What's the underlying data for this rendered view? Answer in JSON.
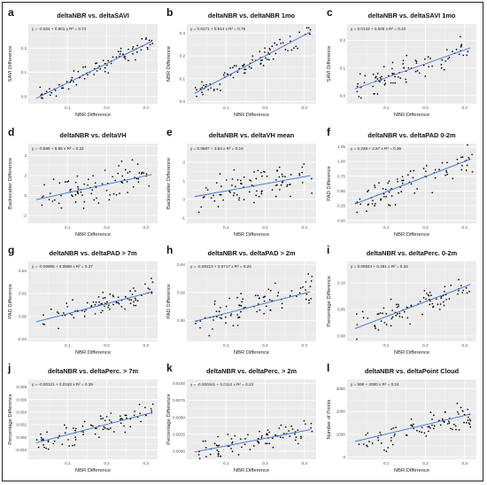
{
  "chart_data": [
    {
      "letter": "a",
      "type": "scatter",
      "title": "deltaNBR vs. deltaSAVI",
      "xlabel": "NBR Difference",
      "ylabel": "SAVI Difference",
      "equation": "y = -0.024 + 0.801 x   R² = 0.74",
      "xlim": [
        0,
        0.33
      ],
      "ylim": [
        -0.03,
        0.3
      ],
      "xticks": [
        0.1,
        0.2,
        0.3
      ],
      "yticks": [
        0.0,
        0.1,
        0.2
      ],
      "xtick_labels": [
        "0.1",
        "0.2",
        "0.3"
      ],
      "ytick_labels": [
        "0.0",
        "0.1",
        "0.2"
      ],
      "fit": {
        "intercept": -0.024,
        "slope": 0.801
      },
      "noise": 0.03,
      "seed": 11
    },
    {
      "letter": "b",
      "type": "scatter",
      "title": "deltaNBR vs. deltaNBR 1mo",
      "xlabel": "NBR Difference",
      "ylabel": "NBR Difference",
      "equation": "y = 0.0171 + 0.914 x   R² = 0.76",
      "xlim": [
        0,
        0.33
      ],
      "ylim": [
        -0.01,
        0.34
      ],
      "xticks": [
        0.1,
        0.2,
        0.3
      ],
      "yticks": [
        0.0,
        0.1,
        0.2,
        0.3
      ],
      "xtick_labels": [
        "0.1",
        "0.2",
        "0.3"
      ],
      "ytick_labels": [
        "0.0",
        "0.1",
        "0.2",
        "0.3"
      ],
      "fit": {
        "intercept": 0.0171,
        "slope": 0.914
      },
      "noise": 0.035,
      "seed": 22
    },
    {
      "letter": "c",
      "type": "scatter",
      "title": "deltaNBR vs. deltaSAVI 1mo",
      "xlabel": "NBR Difference",
      "ylabel": "SAVI Difference",
      "equation": "y = 0.0143 + 0.505 x   R² = 0.44",
      "xlim": [
        0,
        0.33
      ],
      "ylim": [
        -0.03,
        0.26
      ],
      "xticks": [
        0.1,
        0.2,
        0.3
      ],
      "yticks": [
        0.0,
        0.1,
        0.2
      ],
      "xtick_labels": [
        "0.1",
        "0.2",
        "0.3"
      ],
      "ytick_labels": [
        "0.0",
        "0.1",
        "0.2"
      ],
      "fit": {
        "intercept": 0.0143,
        "slope": 0.505
      },
      "noise": 0.045,
      "seed": 33
    },
    {
      "letter": "d",
      "type": "scatter",
      "title": "deltaNBR vs. deltaVH",
      "xlabel": "NBR Difference",
      "ylabel": "Backscatter Difference",
      "equation": "y = -0.586 + 8.55 x   R² = 0.22",
      "xlim": [
        0,
        0.33
      ],
      "ylim": [
        -2.8,
        5.2
      ],
      "xticks": [
        0.1,
        0.2,
        0.3
      ],
      "yticks": [
        -2,
        0,
        2,
        4
      ],
      "xtick_labels": [
        "0.1",
        "0.2",
        "0.3"
      ],
      "ytick_labels": [
        "-2",
        "0",
        "2",
        "4"
      ],
      "fit": {
        "intercept": -0.586,
        "slope": 8.55
      },
      "noise": 1.5,
      "seed": 44
    },
    {
      "letter": "e",
      "type": "scatter",
      "title": "deltaNBR vs. deltaVH mean",
      "xlabel": "NBR Difference",
      "ylabel": "Backscatter Difference",
      "equation": "y = 0.0687 + 3.84 x   R² = 0.16",
      "xlim": [
        0,
        0.33
      ],
      "ylim": [
        -1.3,
        3.0
      ],
      "xticks": [
        0.1,
        0.2,
        0.3
      ],
      "yticks": [
        -1,
        0,
        1,
        2
      ],
      "xtick_labels": [
        "0.1",
        "0.2",
        "0.3"
      ],
      "ytick_labels": [
        "-1",
        "0",
        "1",
        "2"
      ],
      "fit": {
        "intercept": 0.0687,
        "slope": 3.84
      },
      "noise": 0.8,
      "seed": 55
    },
    {
      "letter": "f",
      "type": "scatter",
      "title": "deltaNBR vs. deltaPAD 0-2m",
      "xlabel": "NBR Difference",
      "ylabel": "PAD Difference",
      "equation": "y = 0.228 + 2.57 x   R² = 0.36",
      "xlim": [
        0,
        0.33
      ],
      "ylim": [
        -0.05,
        1.3
      ],
      "xticks": [
        0.1,
        0.2,
        0.3
      ],
      "yticks": [
        0.0,
        0.25,
        0.5,
        0.75,
        1.0,
        1.25
      ],
      "xtick_labels": [
        "0.1",
        "0.2",
        "0.3"
      ],
      "ytick_labels": [
        "0.00",
        "0.25",
        "0.50",
        "0.75",
        "1.00",
        "1.25"
      ],
      "fit": {
        "intercept": 0.228,
        "slope": 2.57
      },
      "noise": 0.2,
      "seed": 66
    },
    {
      "letter": "g",
      "type": "scatter",
      "title": "deltaNBR vs. deltaPAD > 7m",
      "xlabel": "NBR Difference",
      "ylabel": "PAD Difference",
      "equation": "y = -0.00665 + 0.0888 x   R² = 0.37",
      "xlim": [
        0,
        0.33
      ],
      "ylim": [
        -0.022,
        0.048
      ],
      "xticks": [
        0.1,
        0.2,
        0.3
      ],
      "yticks": [
        -0.02,
        0.0,
        0.02,
        0.04
      ],
      "xtick_labels": [
        "0.1",
        "0.2",
        "0.3"
      ],
      "ytick_labels": [
        "-0.02",
        "0.00",
        "0.02",
        "0.04"
      ],
      "fit": {
        "intercept": -0.00665,
        "slope": 0.0888
      },
      "noise": 0.009,
      "seed": 77
    },
    {
      "letter": "h",
      "type": "scatter",
      "title": "deltaNBR vs. deltaPAD > 2m",
      "xlabel": "NBR Difference",
      "ylabel": "PAD Difference",
      "equation": "y = -0.00213 + 0.0717 x   R² = 0.24",
      "xlim": [
        0,
        0.33
      ],
      "ylim": [
        -0.015,
        0.042
      ],
      "xticks": [
        0.1,
        0.2,
        0.3
      ],
      "yticks": [
        0.0,
        0.02,
        0.04
      ],
      "xtick_labels": [
        "0.1",
        "0.2",
        "0.3"
      ],
      "ytick_labels": [
        "0.00",
        "0.02",
        "0.04"
      ],
      "fit": {
        "intercept": -0.00213,
        "slope": 0.0717
      },
      "noise": 0.009,
      "seed": 88
    },
    {
      "letter": "i",
      "type": "scatter",
      "title": "deltaNBR vs. deltaPerc. 0-2m",
      "xlabel": "NBR Difference",
      "ylabel": "Percentage Difference",
      "equation": "y = 0.00844 + 0.281 x   R² = 0.34",
      "xlim": [
        0,
        0.33
      ],
      "ylim": [
        -0.01,
        0.14
      ],
      "xticks": [
        0.1,
        0.2,
        0.3
      ],
      "yticks": [
        0.0,
        0.05,
        0.1
      ],
      "xtick_labels": [
        "0.1",
        "0.2",
        "0.3"
      ],
      "ytick_labels": [
        "0.00",
        "0.05",
        "0.10"
      ],
      "fit": {
        "intercept": 0.00844,
        "slope": 0.281
      },
      "noise": 0.022,
      "seed": 99
    },
    {
      "letter": "j",
      "type": "scatter",
      "title": "deltaNBR vs. deltaPerc. > 7m",
      "xlabel": "NBR Difference",
      "ylabel": "Percentage Difference",
      "equation": "y = -0.00121 + 0.0163 x   R² = 0.39",
      "xlim": [
        0,
        0.33
      ],
      "ylim": [
        -0.0035,
        0.0092
      ],
      "xticks": [
        0.1,
        0.2,
        0.3
      ],
      "yticks": [
        -0.002,
        0.0,
        0.002,
        0.004,
        0.006,
        0.008
      ],
      "xtick_labels": [
        "0.1",
        "0.2",
        "0.3"
      ],
      "ytick_labels": [
        "-0.002",
        "0.000",
        "0.002",
        "0.004",
        "0.006",
        "0.008"
      ],
      "fit": {
        "intercept": -0.00121,
        "slope": 0.0163
      },
      "noise": 0.0015,
      "seed": 111
    },
    {
      "letter": "k",
      "type": "scatter",
      "title": "deltaNBR vs. deltaPerc. > 2m",
      "xlabel": "NBR Difference",
      "ylabel": "Percentage Difference",
      "equation": "y = -0.000341 + 0.0112 x   R² = 0.23",
      "xlim": [
        0,
        0.33
      ],
      "ylim": [
        -0.0012,
        0.0106
      ],
      "xticks": [
        0.1,
        0.2,
        0.3
      ],
      "yticks": [
        0.0,
        0.0025,
        0.005,
        0.0075,
        0.01
      ],
      "xtick_labels": [
        "0.1",
        "0.2",
        "0.3"
      ],
      "ytick_labels": [
        "0.0000",
        "0.0025",
        "0.0050",
        "0.0075",
        "0.0100"
      ],
      "fit": {
        "intercept": -0.000341,
        "slope": 0.0112
      },
      "noise": 0.0014,
      "seed": 122
    },
    {
      "letter": "l",
      "type": "scatter",
      "title": "deltaNBR vs. deltaPoint Cloud",
      "xlabel": "NBR Difference",
      "ylabel": "Number of Points",
      "equation": "y = 596 + 4090 x   R² = 0.24",
      "xlim": [
        0,
        0.33
      ],
      "ylim": [
        -100,
        3400
      ],
      "xticks": [
        0.1,
        0.2,
        0.3
      ],
      "yticks": [
        0,
        1000,
        2000,
        3000
      ],
      "xtick_labels": [
        "0.1",
        "0.2",
        "0.3"
      ],
      "ytick_labels": [
        "0",
        "1000",
        "2000",
        "3000"
      ],
      "fit": {
        "intercept": 596,
        "slope": 4090
      },
      "noise": 520,
      "seed": 133
    }
  ],
  "style": {
    "panel_bg": "#ebebeb",
    "grid": "#ffffff",
    "point": "#000000",
    "fit_line": "#3b6fd8"
  }
}
